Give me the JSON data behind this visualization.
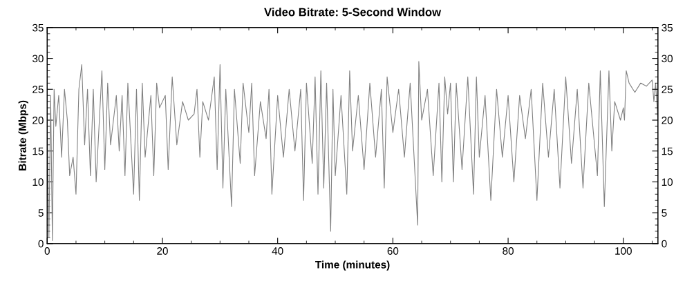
{
  "chart_data": {
    "type": "line",
    "title": "Video Bitrate: 5-Second Window",
    "xlabel": "Time (minutes)",
    "ylabel": "Bitrate (Mbps)",
    "xlim": [
      0,
      106
    ],
    "xticks": [
      0,
      20,
      40,
      60,
      80,
      100
    ],
    "ylim": [
      0,
      35
    ],
    "yticks": [
      0,
      5,
      10,
      15,
      20,
      25,
      30,
      35
    ],
    "y2lim": [
      0,
      35
    ],
    "y2ticks": [
      0,
      5,
      10,
      15,
      20,
      25,
      30,
      35
    ],
    "grid": false,
    "marker": "none",
    "line_style": "solid",
    "series": [
      {
        "color": "#808080",
        "x": [
          0,
          0.3,
          0.6,
          0.9,
          1.2,
          1.5,
          2,
          2.5,
          3,
          3.5,
          3.9,
          4.5,
          5,
          5.5,
          6,
          6.5,
          7,
          7.5,
          8,
          8.5,
          9.5,
          10,
          10.5,
          11,
          12,
          12.5,
          13,
          13.5,
          14,
          15,
          15.5,
          16,
          16.5,
          17,
          18,
          18.5,
          19,
          19.5,
          20.5,
          21,
          21.7,
          22.5,
          23.5,
          24.5,
          25.5,
          26,
          26.5,
          27,
          28,
          29,
          29.5,
          30,
          30.5,
          31,
          32,
          32.5,
          33.5,
          34,
          35,
          35.5,
          36,
          37,
          38,
          38.5,
          39,
          40,
          41,
          42,
          43,
          44,
          44.5,
          45,
          46,
          46.5,
          47,
          47.5,
          48,
          48.5,
          49.2,
          49.6,
          50,
          51,
          52,
          52.5,
          53,
          54,
          55,
          56,
          57,
          58,
          58.5,
          59,
          60,
          61,
          62,
          63,
          64.3,
          64.5,
          65,
          66,
          67,
          68,
          68.5,
          69,
          69.5,
          70,
          70.5,
          71,
          72,
          73,
          74,
          74.5,
          75,
          76,
          77,
          78,
          79,
          80,
          81,
          82,
          83,
          84,
          85,
          86,
          87,
          88,
          89,
          90,
          91,
          92,
          93,
          94,
          95.5,
          96,
          96.7,
          97.5,
          98,
          98.5,
          99.5,
          100,
          100.2,
          100.5,
          101,
          102,
          103,
          104,
          105,
          105.3,
          105.6,
          106
        ],
        "values": [
          20,
          1,
          24,
          0.5,
          25,
          19,
          24,
          14,
          25,
          20,
          11,
          14,
          8,
          25,
          29,
          16,
          25,
          11,
          25,
          10,
          28,
          12,
          26,
          16,
          24,
          15,
          24,
          11,
          26,
          8,
          25,
          7,
          26,
          14,
          24,
          11,
          26,
          22,
          24,
          12,
          27,
          16,
          23,
          20,
          21,
          25,
          14,
          23,
          20,
          27,
          12,
          29,
          9,
          25,
          6,
          25,
          13,
          26,
          18,
          26,
          11,
          23,
          17,
          25,
          8,
          24,
          14,
          25,
          15,
          25,
          7,
          26,
          13,
          27,
          8,
          28,
          9,
          26,
          2,
          25,
          11,
          24,
          8,
          28,
          15,
          24,
          12,
          26,
          14,
          25,
          9,
          27,
          18,
          25,
          14,
          26,
          3,
          29.5,
          20,
          25,
          11,
          26,
          10,
          27,
          21,
          26,
          10,
          26,
          12,
          27,
          8,
          27,
          14,
          24,
          7,
          25,
          14,
          24,
          10,
          24,
          17,
          25,
          7,
          26,
          14,
          25,
          9,
          27,
          13,
          25,
          9,
          26,
          11,
          28,
          6,
          28,
          15,
          23,
          20,
          22,
          20,
          28,
          26,
          24.5,
          26,
          25.5,
          26.5,
          23,
          26,
          20
        ]
      }
    ]
  }
}
